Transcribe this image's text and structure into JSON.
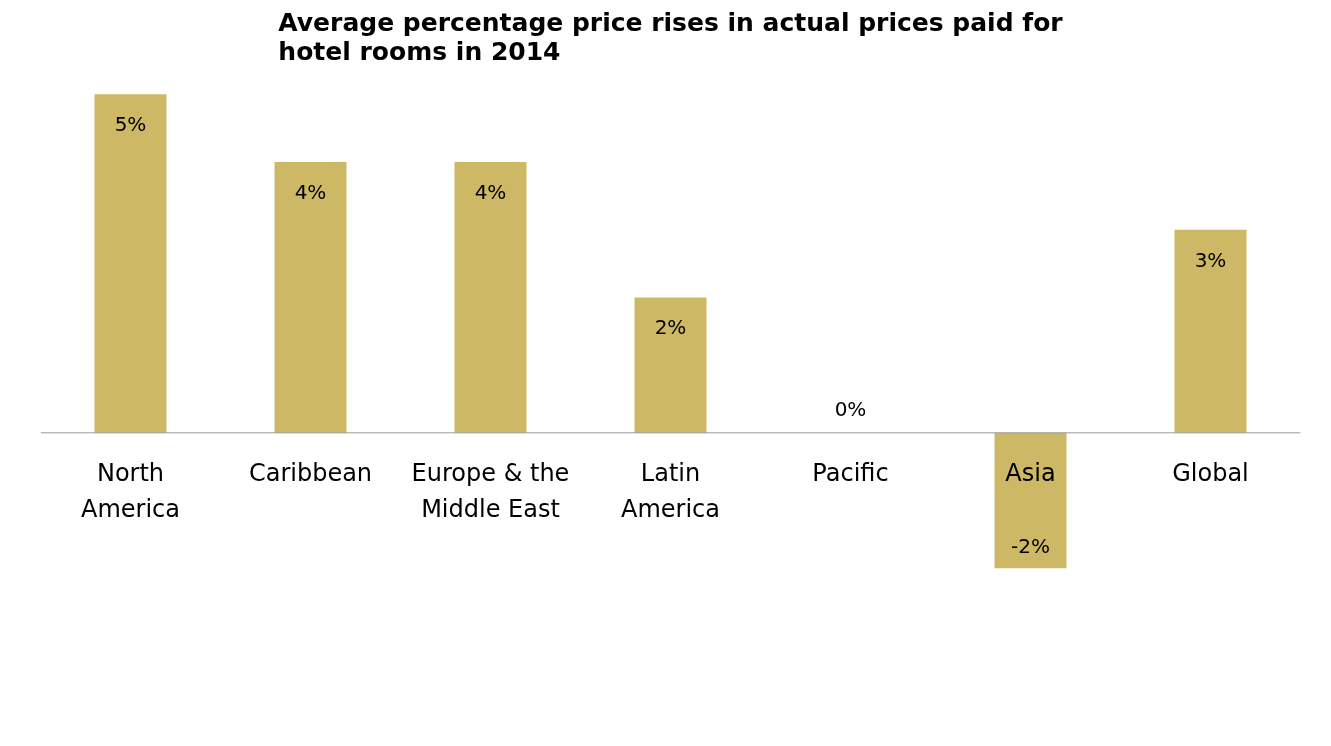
{
  "chart_data": {
    "type": "bar",
    "title": "Average percentage price rises in actual prices paid for hotel rooms in 2014",
    "categories": [
      "North America",
      "Caribbean",
      "Europe & the Middle East",
      "Latin America",
      "Pacific",
      "Asia",
      "Global"
    ],
    "values": [
      5,
      4,
      4,
      2,
      0,
      -2,
      3
    ],
    "color": "#cdb865",
    "data_labels": true,
    "value_labels": [
      "5%",
      "4%",
      "4%",
      "2%",
      "0%",
      "-2%",
      "3%"
    ]
  }
}
